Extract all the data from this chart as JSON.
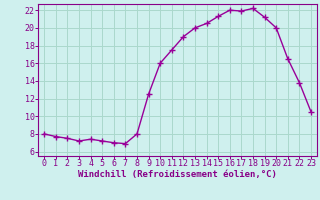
{
  "x": [
    0,
    1,
    2,
    3,
    4,
    5,
    6,
    7,
    8,
    9,
    10,
    11,
    12,
    13,
    14,
    15,
    16,
    17,
    18,
    19,
    20,
    21,
    22,
    23
  ],
  "y": [
    8.0,
    7.7,
    7.5,
    7.2,
    7.4,
    7.2,
    7.0,
    6.9,
    8.0,
    12.5,
    16.0,
    17.5,
    19.0,
    20.0,
    20.5,
    21.3,
    22.0,
    21.9,
    22.2,
    21.2,
    20.0,
    16.5,
    13.8,
    10.5
  ],
  "line_color": "#990099",
  "marker": "+",
  "marker_size": 4,
  "marker_linewidth": 1.0,
  "line_width": 1.0,
  "bg_color": "#cff0ee",
  "grid_color": "#aad8cc",
  "xlabel": "Windchill (Refroidissement éolien,°C)",
  "xlabel_color": "#880088",
  "tick_color": "#880088",
  "ylim": [
    5.5,
    22.7
  ],
  "yticks": [
    6,
    8,
    10,
    12,
    14,
    16,
    18,
    20,
    22
  ],
  "xlim": [
    -0.5,
    23.5
  ],
  "tick_fontsize": 6.0,
  "xlabel_fontsize": 6.5
}
